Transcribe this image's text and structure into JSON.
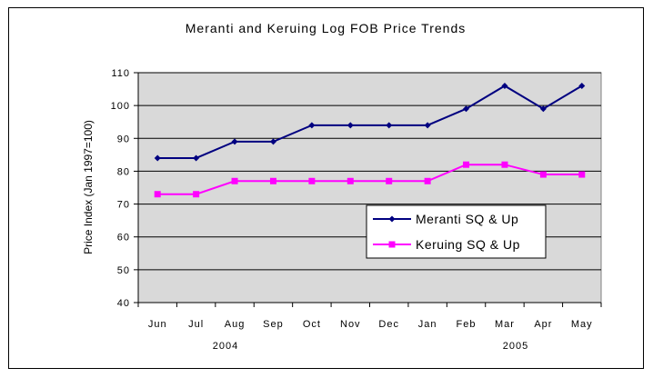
{
  "chart_data": {
    "type": "line",
    "title": "Meranti and Keruing Log FOB Price Trends",
    "ylabel": "Price Index (Jan 1997=100)",
    "xlabel": "",
    "categories": [
      "Jun",
      "Jul",
      "Aug",
      "Sep",
      "Oct",
      "Nov",
      "Dec",
      "Jan",
      "Feb",
      "Mar",
      "Apr",
      "May"
    ],
    "year_labels": [
      "2004",
      "2005"
    ],
    "ylim": [
      40,
      110
    ],
    "yticks": [
      40,
      50,
      60,
      70,
      80,
      90,
      100,
      110
    ],
    "grid": true,
    "legend_position": "lower-right",
    "series": [
      {
        "name": "Meranti SQ & Up",
        "color": "#000080",
        "marker": "diamond",
        "values": [
          84,
          84,
          89,
          89,
          94,
          94,
          94,
          94,
          99,
          106,
          99,
          106
        ]
      },
      {
        "name": "Keruing SQ & Up",
        "color": "#FF00FF",
        "marker": "square",
        "values": [
          73,
          73,
          77,
          77,
          77,
          77,
          77,
          77,
          82,
          82,
          79,
          79
        ]
      }
    ],
    "plot_background": "#D9D9D9"
  }
}
